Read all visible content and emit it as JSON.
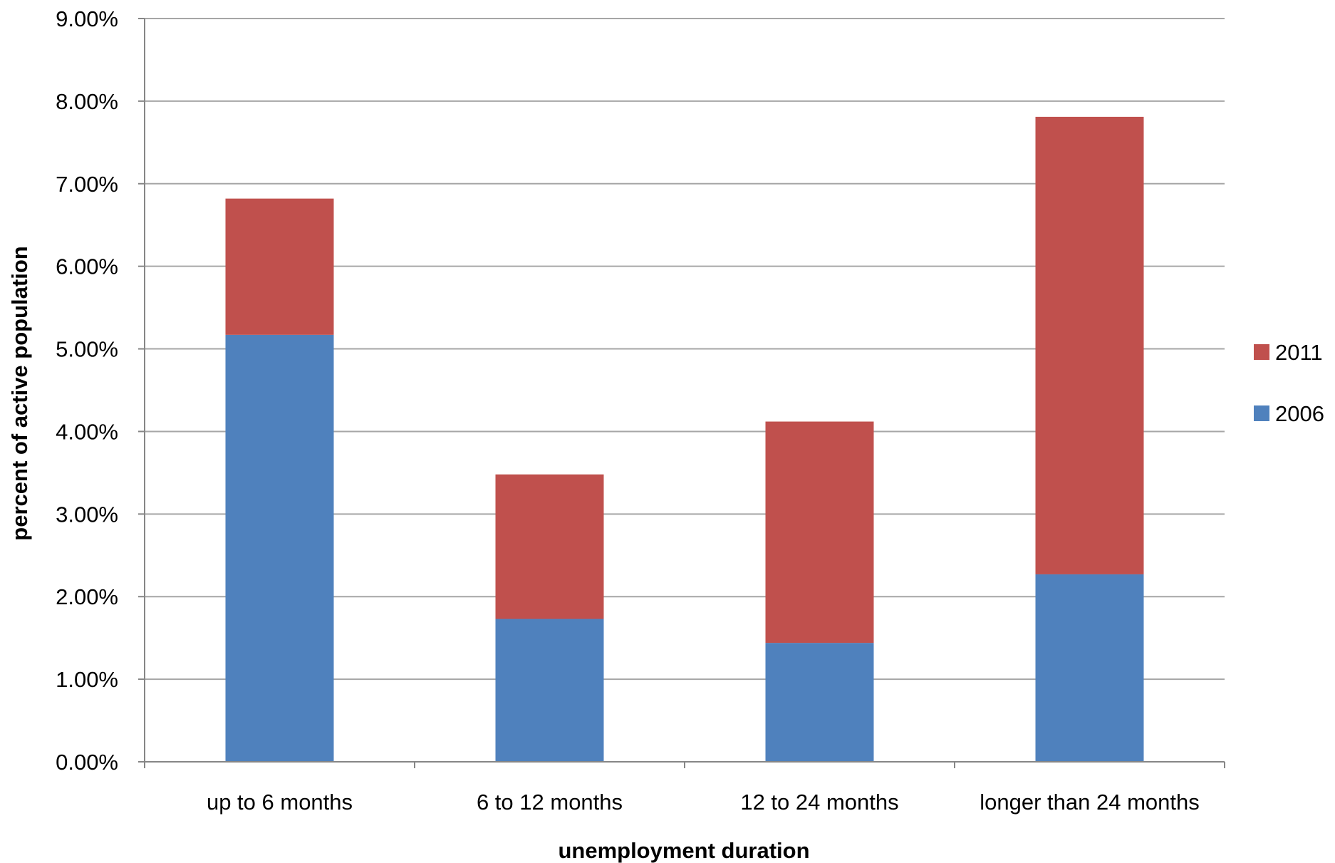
{
  "chart_data": {
    "type": "bar",
    "stacked": true,
    "title": "",
    "xlabel": "unemployment duration",
    "ylabel": "percent of active population",
    "categories": [
      "up to 6 months",
      "6 to 12 months",
      "12 to 24 months",
      "longer than 24 months"
    ],
    "series": [
      {
        "name": "2006",
        "color": "#4F81BD",
        "values": [
          5.17,
          1.73,
          1.44,
          2.27
        ],
        "value_unit": "%"
      },
      {
        "name": "2011",
        "color": "#C0504D",
        "values": [
          1.65,
          1.75,
          2.68,
          5.54
        ],
        "value_unit": "%"
      }
    ],
    "stacked_totals": [
      6.82,
      3.48,
      4.12,
      7.81
    ],
    "ylim": [
      0,
      9
    ],
    "yticks": [
      0,
      1,
      2,
      3,
      4,
      5,
      6,
      7,
      8,
      9
    ],
    "ytick_labels": [
      "0.00%",
      "1.00%",
      "2.00%",
      "3.00%",
      "4.00%",
      "5.00%",
      "6.00%",
      "7.00%",
      "8.00%",
      "9.00%"
    ],
    "grid": true,
    "legend": {
      "position": "right",
      "entries": [
        "2011",
        "2006"
      ]
    },
    "colors": {
      "gridline": "#A6A6A6",
      "axis": "#868686"
    }
  }
}
